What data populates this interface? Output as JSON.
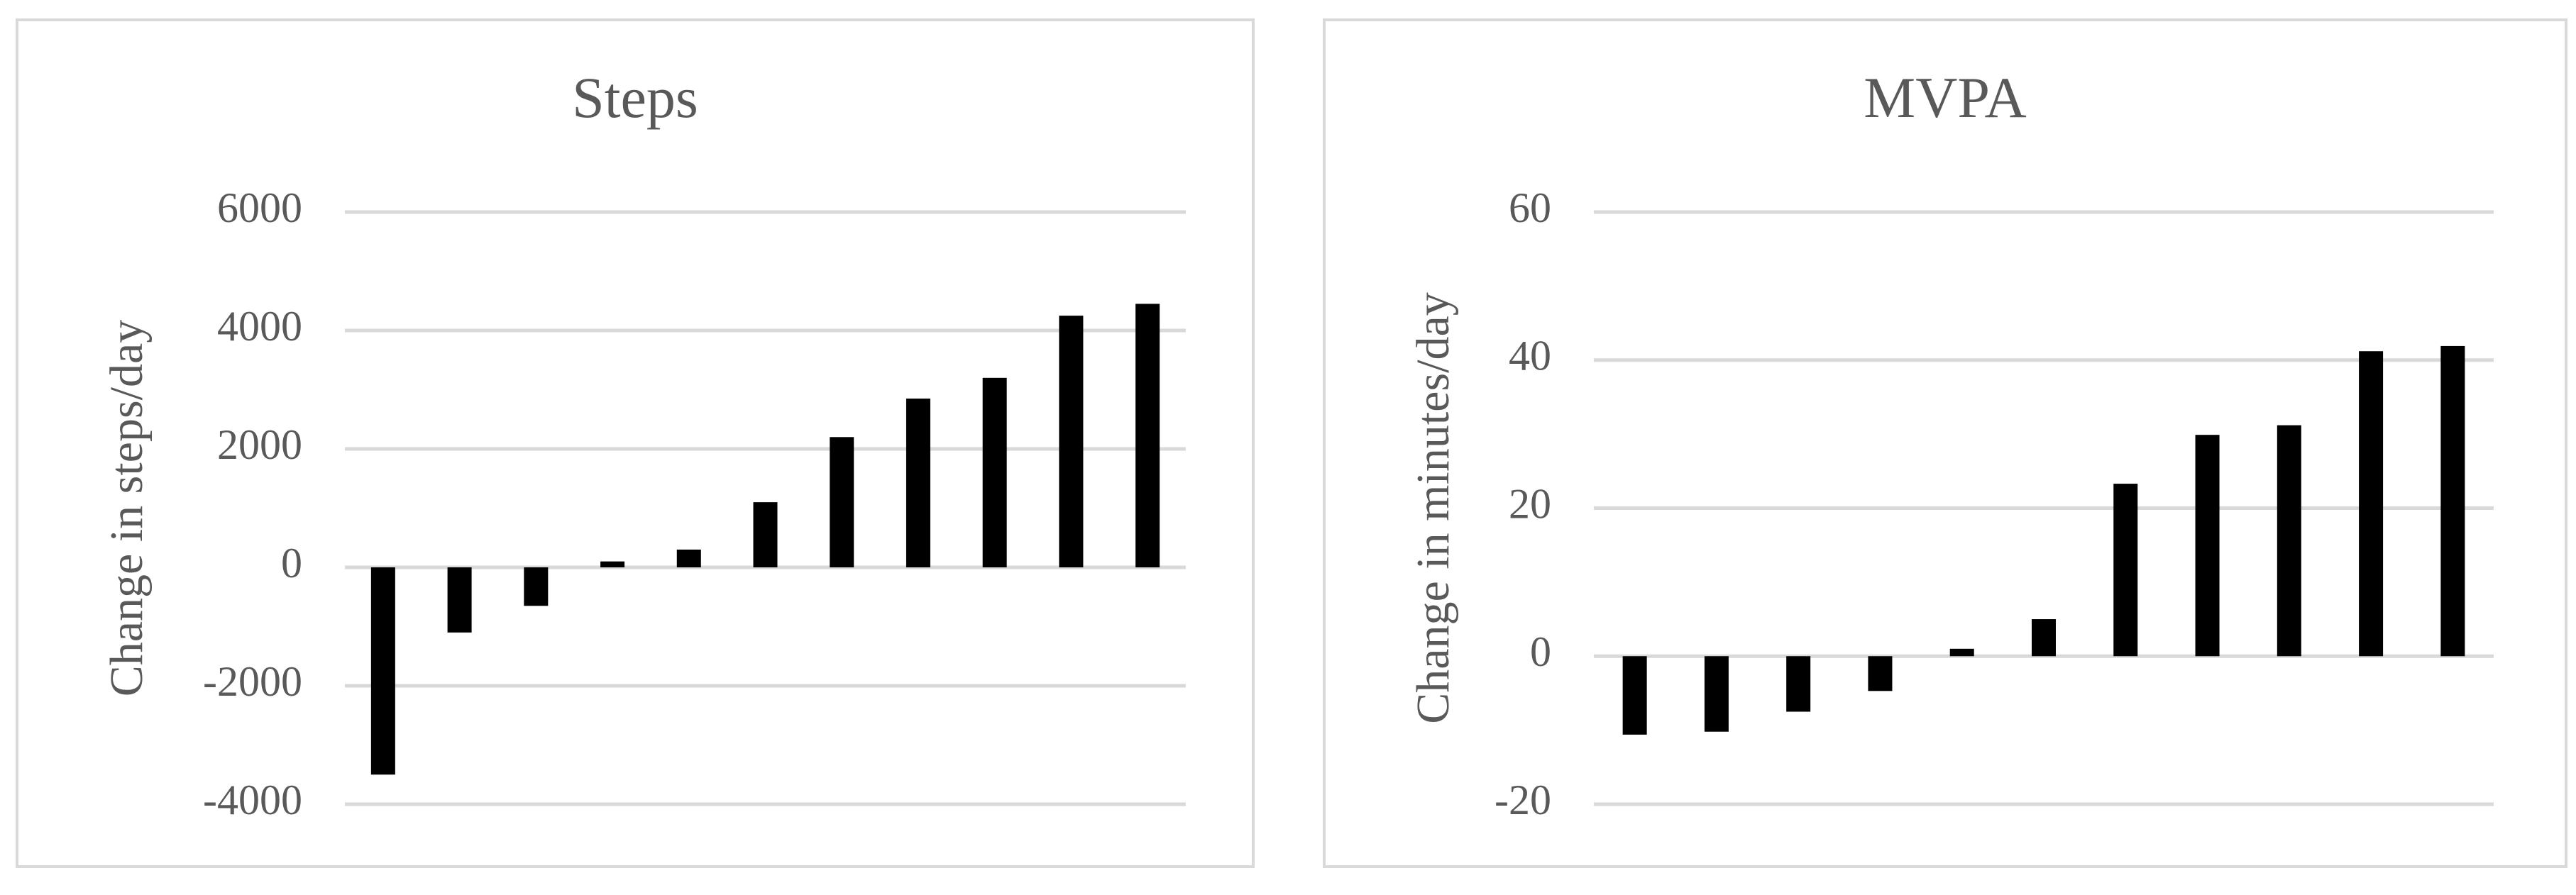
{
  "chart_data": [
    {
      "type": "bar",
      "title": "Steps",
      "y_label": "Change in steps/day",
      "categories": [
        null,
        null,
        null,
        null,
        null,
        null,
        null,
        null,
        null,
        null,
        null
      ],
      "values": [
        -3500,
        -1100,
        -650,
        100,
        300,
        1100,
        2200,
        2850,
        3200,
        4250,
        4450
      ],
      "color": "#000000",
      "ylim": [
        -4000,
        6000
      ],
      "yticks": [
        -4000,
        -2000,
        0,
        2000,
        4000,
        6000
      ],
      "grid": true
    },
    {
      "type": "bar",
      "title": "MVPA",
      "y_label": "Change in minutes/day",
      "categories": [
        null,
        null,
        null,
        null,
        null,
        null,
        null,
        null,
        null,
        null,
        null
      ],
      "values": [
        -10.6,
        -10.2,
        -7.5,
        -4.7,
        1,
        5,
        23.3,
        29.9,
        31.2,
        41.2,
        41.9
      ],
      "color": "#000000",
      "ylim": [
        -20,
        60
      ],
      "yticks": [
        -20,
        0,
        20,
        40,
        60
      ],
      "grid": true
    }
  ]
}
